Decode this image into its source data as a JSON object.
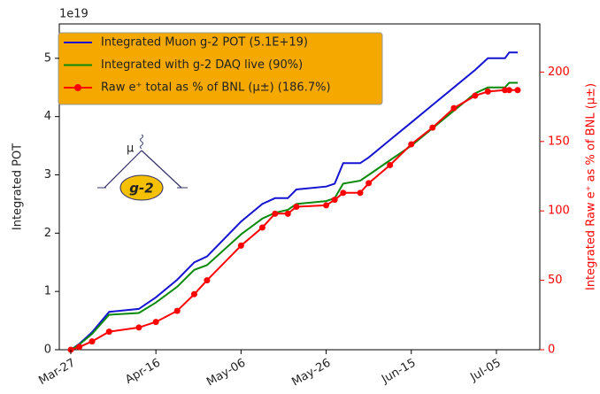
{
  "chart_data": {
    "type": "line",
    "y_offset_label": "1e19",
    "ylabel": "Integrated POT",
    "y2label": "Integrated Raw e⁺ as % of BNL (μ±)",
    "x": [
      0,
      2,
      5,
      9,
      16,
      20,
      25,
      29,
      32,
      40,
      45,
      48,
      51,
      53,
      60,
      62,
      64,
      68,
      70,
      75,
      80,
      85,
      90,
      95,
      98,
      102,
      103,
      105
    ],
    "xlim": [
      -2.7,
      110.2
    ],
    "xticks": [
      {
        "value": 0,
        "label": "Mar-27"
      },
      {
        "value": 20,
        "label": "Apr-16"
      },
      {
        "value": 40,
        "label": "May-06"
      },
      {
        "value": 60,
        "label": "May-26"
      },
      {
        "value": 80,
        "label": "Jun-15"
      },
      {
        "value": 100,
        "label": "Jul-05"
      }
    ],
    "ylim": [
      0,
      5.59
    ],
    "yticks": [
      0,
      1,
      2,
      3,
      4,
      5
    ],
    "y2lim": [
      0,
      234.7
    ],
    "y2ticks": [
      0,
      50,
      100,
      150,
      200
    ],
    "legend": "upper left",
    "legend_color": "#f5a800",
    "series": [
      {
        "name": "Integrated Muon g-2 POT (5.1E+19)",
        "color": "#1414d2",
        "values": [
          0,
          0.1,
          0.3,
          0.65,
          0.7,
          0.9,
          1.2,
          1.5,
          1.6,
          2.2,
          2.5,
          2.6,
          2.6,
          2.75,
          2.8,
          2.85,
          3.2,
          3.2,
          3.3,
          3.6,
          3.9,
          4.2,
          4.5,
          4.8,
          5.0,
          5.0,
          5.1,
          5.1
        ]
      },
      {
        "name": "Integrated with g-2 DAQ live (90%)",
        "color": "#0a8a0a",
        "values": [
          0,
          0.09,
          0.27,
          0.6,
          0.63,
          0.81,
          1.08,
          1.37,
          1.45,
          1.98,
          2.25,
          2.35,
          2.4,
          2.5,
          2.55,
          2.6,
          2.85,
          2.9,
          3.0,
          3.25,
          3.5,
          3.8,
          4.1,
          4.4,
          4.5,
          4.5,
          4.58,
          4.58
        ]
      },
      {
        "name": "Raw e⁺ total as % of BNL (μ±) (186.7%)",
        "color": "#ff0000",
        "axis": "y2",
        "marker": "o",
        "values": [
          0,
          2,
          6,
          13,
          16,
          20,
          28,
          40,
          50,
          75,
          88,
          98,
          98,
          103,
          104,
          108,
          113,
          113,
          120,
          133,
          148,
          160,
          174,
          183,
          186,
          187,
          187,
          187
        ]
      }
    ]
  }
}
